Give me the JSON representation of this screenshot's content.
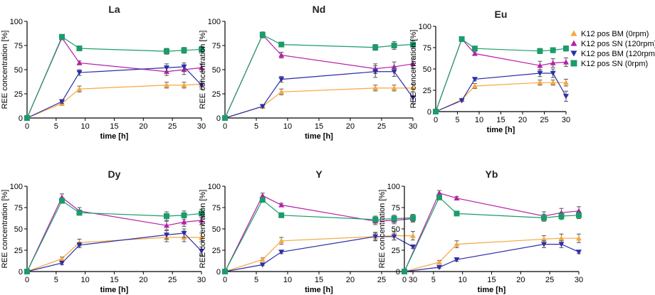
{
  "chart_data": {
    "type": "line",
    "x": [
      0,
      6,
      9,
      24,
      27,
      30
    ],
    "xlabel": "time [h]",
    "ylabel": "REE concentration [%]",
    "xlim": [
      0,
      30
    ],
    "ylim": [
      0,
      100
    ],
    "xticks": [
      "0",
      "5",
      "10",
      "15",
      "20",
      "25",
      "30"
    ],
    "yticks": [
      "0",
      "25",
      "50",
      "75",
      "100"
    ],
    "series_styles": [
      {
        "name": "K12 pos BM (0rpm)",
        "color": "#F5A742",
        "marker": "triangle-up"
      },
      {
        "name": "K12 pos SN (120rpm)",
        "color": "#B71FA8",
        "marker": "triangle-up"
      },
      {
        "name": "K12 pos BM (120rpm)",
        "color": "#2C2DA8",
        "marker": "triangle-down"
      },
      {
        "name": "K12 pos SN (0rpm)",
        "color": "#1B9C6A",
        "marker": "square"
      }
    ],
    "panels": [
      {
        "title": "La",
        "series": [
          {
            "name": "K12 pos BM (0rpm)",
            "values": [
              0,
              15,
              30,
              34,
              34,
              35
            ],
            "errors": [
              0,
              2,
              3,
              3,
              3,
              3
            ]
          },
          {
            "name": "K12 pos SN (120rpm)",
            "values": [
              0,
              83,
              57,
              48,
              50,
              52
            ],
            "errors": [
              0,
              2,
              2,
              4,
              5,
              4
            ]
          },
          {
            "name": "K12 pos BM (120rpm)",
            "values": [
              0,
              17,
              47,
              52,
              53,
              34
            ],
            "errors": [
              0,
              2,
              3,
              4,
              4,
              4
            ]
          },
          {
            "name": "K12 pos SN (0rpm)",
            "values": [
              0,
              84,
              72,
              69,
              70,
              71
            ],
            "errors": [
              0,
              2,
              2,
              3,
              3,
              3
            ]
          }
        ]
      },
      {
        "title": "Nd",
        "series": [
          {
            "name": "K12 pos BM (0rpm)",
            "values": [
              0,
              12,
              27,
              31,
              31,
              31
            ],
            "errors": [
              0,
              2,
              3,
              3,
              3,
              4
            ]
          },
          {
            "name": "K12 pos SN (120rpm)",
            "values": [
              0,
              86,
              65,
              51,
              53,
              56
            ],
            "errors": [
              0,
              3,
              3,
              5,
              5,
              5
            ]
          },
          {
            "name": "K12 pos BM (120rpm)",
            "values": [
              0,
              12,
              40,
              48,
              48,
              21
            ],
            "errors": [
              0,
              1,
              3,
              6,
              5,
              6
            ]
          },
          {
            "name": "K12 pos SN (0rpm)",
            "values": [
              0,
              86,
              76,
              73,
              75,
              76
            ],
            "errors": [
              0,
              3,
              2,
              3,
              4,
              4
            ]
          }
        ]
      },
      {
        "title": "Eu",
        "series": [
          {
            "name": "K12 pos BM (0rpm)",
            "values": [
              0,
              14,
              30,
              34,
              34,
              34
            ],
            "errors": [
              0,
              1,
              3,
              3,
              3,
              4
            ]
          },
          {
            "name": "K12 pos SN (120rpm)",
            "values": [
              0,
              85,
              68,
              54,
              57,
              58
            ],
            "errors": [
              0,
              2,
              2,
              5,
              5,
              5
            ]
          },
          {
            "name": "K12 pos BM (120rpm)",
            "values": [
              0,
              13,
              38,
              45,
              45,
              18
            ],
            "errors": [
              0,
              1,
              2,
              4,
              5,
              6
            ]
          },
          {
            "name": "K12 pos SN (0rpm)",
            "values": [
              0,
              85,
              74,
              71,
              72,
              74
            ],
            "errors": [
              0,
              2,
              2,
              3,
              3,
              3
            ]
          }
        ]
      },
      {
        "title": "Dy",
        "series": [
          {
            "name": "K12 pos BM (0rpm)",
            "values": [
              0,
              15,
              34,
              40,
              40,
              40
            ],
            "errors": [
              0,
              2,
              4,
              5,
              5,
              5
            ]
          },
          {
            "name": "K12 pos SN (120rpm)",
            "values": [
              0,
              87,
              71,
              54,
              58,
              60
            ],
            "errors": [
              0,
              4,
              4,
              5,
              5,
              5
            ]
          },
          {
            "name": "K12 pos BM (120rpm)",
            "values": [
              0,
              10,
              31,
              43,
              45,
              24
            ],
            "errors": [
              0,
              2,
              3,
              5,
              5,
              5
            ]
          },
          {
            "name": "K12 pos SN (0rpm)",
            "values": [
              0,
              83,
              69,
              65,
              66,
              68
            ],
            "errors": [
              0,
              3,
              3,
              5,
              5,
              5
            ]
          }
        ]
      },
      {
        "title": "Y",
        "series": [
          {
            "name": "K12 pos BM (0rpm)",
            "values": [
              0,
              14,
              36,
              41,
              42,
              42
            ],
            "errors": [
              0,
              2,
              4,
              5,
              5,
              5
            ]
          },
          {
            "name": "K12 pos SN (120rpm)",
            "values": [
              0,
              89,
              78,
              59,
              60,
              62
            ],
            "errors": [
              0,
              3,
              2,
              4,
              4,
              4
            ]
          },
          {
            "name": "K12 pos BM (120rpm)",
            "values": [
              0,
              8,
              23,
              41,
              41,
              29
            ],
            "errors": [
              0,
              1,
              2,
              4,
              4,
              2
            ]
          },
          {
            "name": "K12 pos SN (0rpm)",
            "values": [
              0,
              84,
              66,
              61,
              62,
              63
            ],
            "errors": [
              0,
              2,
              2,
              4,
              4,
              4
            ]
          }
        ]
      },
      {
        "title": "Yb",
        "series": [
          {
            "name": "K12 pos BM (0rpm)",
            "values": [
              0,
              11,
              32,
              38,
              39,
              39
            ],
            "errors": [
              0,
              2,
              4,
              4,
              5,
              5
            ]
          },
          {
            "name": "K12 pos SN (120rpm)",
            "values": [
              0,
              92,
              86,
              65,
              69,
              71
            ],
            "errors": [
              0,
              3,
              2,
              5,
              5,
              5
            ]
          },
          {
            "name": "K12 pos BM (120rpm)",
            "values": [
              0,
              5,
              14,
              32,
              32,
              23
            ],
            "errors": [
              0,
              1,
              2,
              4,
              4,
              2
            ]
          },
          {
            "name": "K12 pos SN (0rpm)",
            "values": [
              0,
              87,
              68,
              63,
              65,
              66
            ],
            "errors": [
              0,
              3,
              2,
              4,
              4,
              4
            ]
          }
        ]
      }
    ]
  }
}
